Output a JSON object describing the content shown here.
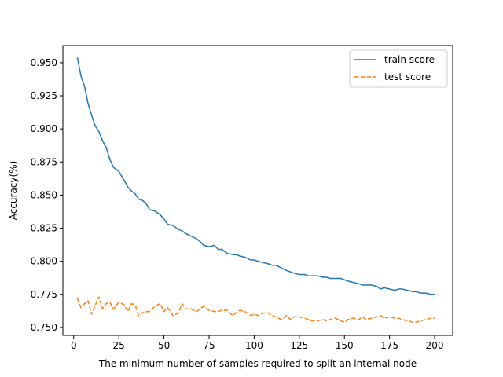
{
  "chart_data": {
    "type": "line",
    "title": "",
    "xlabel": "The minimum number of samples required to split an internal node",
    "ylabel": "Accuracy(%)",
    "xlim": [
      -6,
      210
    ],
    "ylim": [
      0.744,
      0.963
    ],
    "xticks": [
      0,
      25,
      50,
      75,
      100,
      125,
      150,
      175,
      200
    ],
    "xtick_labels": [
      "0",
      "25",
      "50",
      "75",
      "100",
      "125",
      "150",
      "175",
      "200"
    ],
    "yticks": [
      0.75,
      0.775,
      0.8,
      0.825,
      0.85,
      0.875,
      0.9,
      0.925,
      0.95
    ],
    "ytick_labels": [
      "0.750",
      "0.775",
      "0.800",
      "0.825",
      "0.850",
      "0.875",
      "0.900",
      "0.925",
      "0.950"
    ],
    "grid": false,
    "legend": {
      "position": "top-right"
    },
    "series": [
      {
        "name": "train score",
        "color": "#1f77b4",
        "style": "solid",
        "x": [
          2,
          4,
          6,
          8,
          10,
          12,
          14,
          16,
          18,
          20,
          22,
          25,
          28,
          30,
          32,
          34,
          36,
          38,
          40,
          42,
          45,
          48,
          50,
          52,
          55,
          58,
          60,
          62,
          65,
          68,
          70,
          72,
          75,
          78,
          80,
          82,
          85,
          88,
          90,
          92,
          95,
          98,
          100,
          102,
          105,
          108,
          110,
          112,
          115,
          118,
          120,
          122,
          125,
          128,
          130,
          132,
          135,
          138,
          140,
          142,
          145,
          148,
          150,
          152,
          155,
          158,
          160,
          162,
          165,
          168,
          170,
          172,
          175,
          178,
          180,
          182,
          185,
          188,
          190,
          192,
          195,
          198,
          200
        ],
        "y": [
          0.954,
          0.94,
          0.932,
          0.919,
          0.91,
          0.902,
          0.898,
          0.891,
          0.886,
          0.877,
          0.871,
          0.868,
          0.861,
          0.856,
          0.853,
          0.851,
          0.847,
          0.846,
          0.844,
          0.839,
          0.838,
          0.835,
          0.832,
          0.828,
          0.827,
          0.824,
          0.823,
          0.821,
          0.819,
          0.817,
          0.815,
          0.812,
          0.811,
          0.812,
          0.809,
          0.809,
          0.806,
          0.805,
          0.805,
          0.804,
          0.803,
          0.801,
          0.801,
          0.8,
          0.799,
          0.798,
          0.797,
          0.797,
          0.795,
          0.793,
          0.792,
          0.791,
          0.79,
          0.79,
          0.789,
          0.789,
          0.789,
          0.788,
          0.788,
          0.787,
          0.787,
          0.787,
          0.786,
          0.785,
          0.784,
          0.783,
          0.782,
          0.782,
          0.782,
          0.781,
          0.779,
          0.78,
          0.779,
          0.778,
          0.779,
          0.779,
          0.778,
          0.777,
          0.777,
          0.776,
          0.776,
          0.775,
          0.775
        ]
      },
      {
        "name": "test score",
        "color": "#ff7f0e",
        "style": "dashed",
        "x": [
          2,
          4,
          6,
          8,
          10,
          12,
          14,
          16,
          18,
          20,
          22,
          25,
          28,
          30,
          32,
          34,
          36,
          38,
          40,
          42,
          45,
          48,
          50,
          52,
          55,
          58,
          60,
          62,
          65,
          68,
          70,
          72,
          75,
          78,
          80,
          82,
          85,
          88,
          90,
          92,
          95,
          98,
          100,
          102,
          105,
          108,
          110,
          112,
          115,
          118,
          120,
          122,
          125,
          128,
          130,
          132,
          135,
          138,
          140,
          142,
          145,
          148,
          150,
          152,
          155,
          158,
          160,
          162,
          165,
          168,
          170,
          172,
          175,
          178,
          180,
          182,
          185,
          188,
          190,
          192,
          195,
          198,
          200
        ],
        "y": [
          0.772,
          0.765,
          0.768,
          0.77,
          0.76,
          0.767,
          0.773,
          0.764,
          0.768,
          0.769,
          0.764,
          0.769,
          0.767,
          0.762,
          0.768,
          0.767,
          0.759,
          0.761,
          0.762,
          0.762,
          0.766,
          0.768,
          0.762,
          0.765,
          0.759,
          0.761,
          0.768,
          0.764,
          0.764,
          0.762,
          0.764,
          0.766,
          0.763,
          0.762,
          0.762,
          0.763,
          0.763,
          0.759,
          0.761,
          0.763,
          0.762,
          0.759,
          0.76,
          0.759,
          0.761,
          0.761,
          0.759,
          0.758,
          0.756,
          0.759,
          0.756,
          0.758,
          0.758,
          0.757,
          0.756,
          0.755,
          0.755,
          0.756,
          0.755,
          0.756,
          0.757,
          0.755,
          0.754,
          0.756,
          0.757,
          0.756,
          0.758,
          0.756,
          0.757,
          0.758,
          0.759,
          0.757,
          0.758,
          0.757,
          0.757,
          0.756,
          0.755,
          0.754,
          0.754,
          0.755,
          0.756,
          0.757,
          0.757
        ]
      }
    ]
  }
}
